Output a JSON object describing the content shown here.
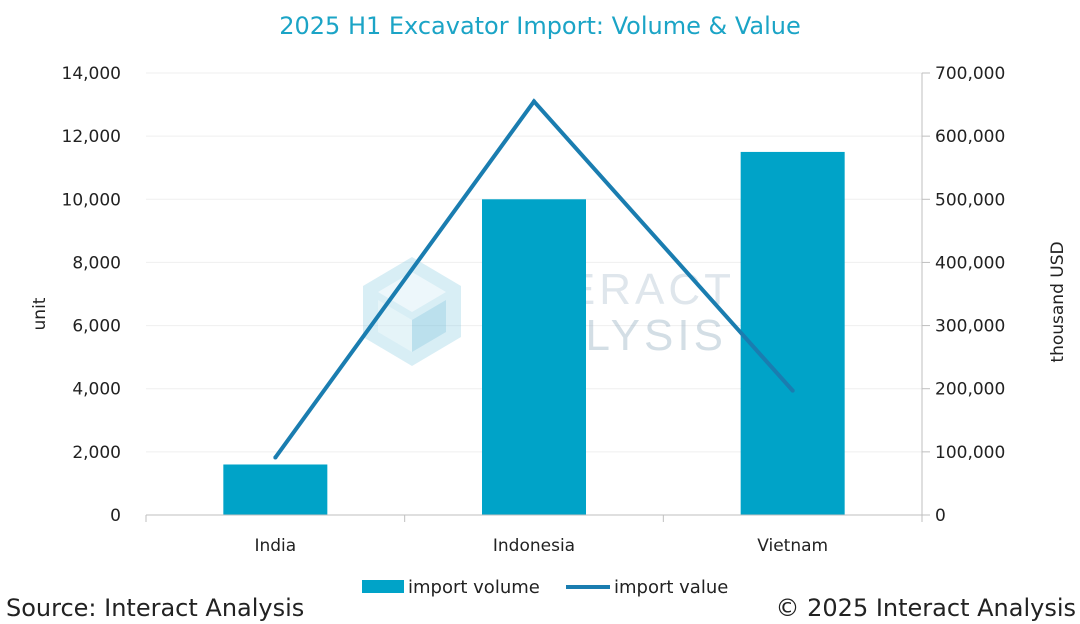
{
  "colors": {
    "bar": "#00a3c8",
    "line": "#1a7db0",
    "title": "#1ba4c6",
    "text": "#222222",
    "axis": "#bfbfbf",
    "grid": "#efefef",
    "watermark_text": "#9fb6c6",
    "watermark_logo": "#8ccbe2"
  },
  "chart_data": {
    "type": "bar",
    "title": "2025 H1 Excavator Import: Volume & Value",
    "categories": [
      "India",
      "Indonesia",
      "Vietnam"
    ],
    "series": [
      {
        "name": "import volume",
        "type": "bar",
        "axis": "left",
        "values": [
          1600,
          10000,
          11500
        ]
      },
      {
        "name": "import value",
        "type": "line",
        "axis": "right",
        "values": [
          91000,
          655000,
          197000
        ]
      }
    ],
    "ylabel": "unit",
    "ylim": [
      0,
      14000
    ],
    "yticks": [
      0,
      2000,
      4000,
      6000,
      8000,
      10000,
      12000,
      14000
    ],
    "ytick_labels": [
      "0",
      "2,000",
      "4,000",
      "6,000",
      "8,000",
      "10,000",
      "12,000",
      "14,000"
    ],
    "y2label": "thousand USD",
    "y2lim": [
      0,
      700000
    ],
    "y2ticks": [
      0,
      100000,
      200000,
      300000,
      400000,
      500000,
      600000,
      700000
    ],
    "y2tick_labels": [
      "0",
      "100,000",
      "200,000",
      "300,000",
      "400,000",
      "500,000",
      "600,000",
      "700,000"
    ],
    "legend": {
      "position": "bottom",
      "entries": [
        "import volume",
        "import value"
      ]
    },
    "grid": true
  },
  "watermark": {
    "line1": "INTERACT",
    "line2": "ANALYSIS"
  },
  "footer": {
    "source": "Source: Interact Analysis",
    "copyright": "© 2025 Interact Analysis"
  }
}
